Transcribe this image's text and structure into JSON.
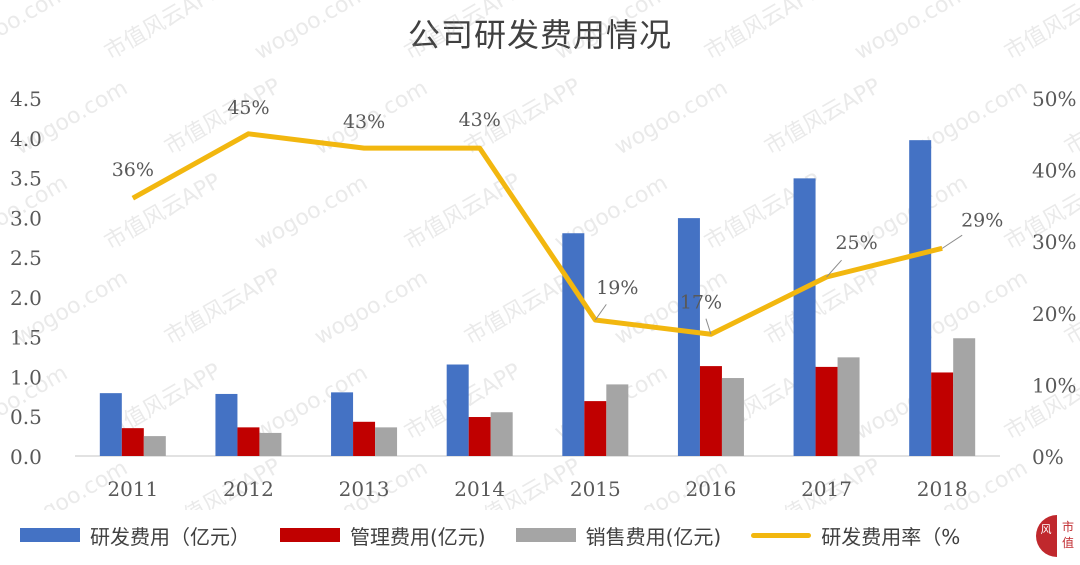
{
  "title": "公司研发费用情况",
  "legend": [
    {
      "label": "研发费用（亿元）",
      "type": "bar",
      "color": "#4472C4"
    },
    {
      "label": "管理费用(亿元)",
      "type": "bar",
      "color": "#C00000"
    },
    {
      "label": "销售费用(亿元)",
      "type": "bar",
      "color": "#A5A5A5"
    },
    {
      "label": "研发费用率（%",
      "type": "line",
      "color": "#F2B70F"
    }
  ],
  "watermark": {
    "texts": [
      "wogoo.com",
      "市值风云APP"
    ],
    "logo_text": [
      "风",
      "市",
      "值"
    ]
  },
  "chart_data": {
    "type": "bar",
    "title": "公司研发费用情况",
    "xlabel": "",
    "ylabel": "",
    "categories": [
      "2011",
      "2012",
      "2013",
      "2014",
      "2015",
      "2016",
      "2017",
      "2018"
    ],
    "series": [
      {
        "name": "研发费用（亿元）",
        "type": "bar",
        "axis": "left",
        "color": "#4472C4",
        "values": [
          0.79,
          0.78,
          0.8,
          1.15,
          2.8,
          2.99,
          3.49,
          3.97
        ]
      },
      {
        "name": "管理费用(亿元)",
        "type": "bar",
        "axis": "left",
        "color": "#C00000",
        "values": [
          0.35,
          0.36,
          0.43,
          0.49,
          0.69,
          1.13,
          1.12,
          1.05
        ]
      },
      {
        "name": "销售费用(亿元)",
        "type": "bar",
        "axis": "left",
        "color": "#A5A5A5",
        "values": [
          0.25,
          0.29,
          0.36,
          0.55,
          0.9,
          0.98,
          1.24,
          1.48
        ]
      },
      {
        "name": "研发费用率（%）",
        "type": "line",
        "axis": "right",
        "color": "#F2B70F",
        "values": [
          36,
          45,
          43,
          43,
          19,
          17,
          25,
          29
        ],
        "labels": [
          "36%",
          "45%",
          "43%",
          "43%",
          "19%",
          "17%",
          "25%",
          "29%"
        ]
      }
    ],
    "y_left": {
      "ylim": [
        0,
        4.5
      ],
      "ticks": [
        "0.0",
        "0.5",
        "1.0",
        "1.5",
        "2.0",
        "2.5",
        "3.0",
        "3.5",
        "4.0",
        "4.5"
      ]
    },
    "y_right": {
      "ylim": [
        0,
        50
      ],
      "ticks": [
        "0%",
        "10%",
        "20%",
        "30%",
        "40%",
        "50%"
      ]
    },
    "grid": false,
    "legend_position": "bottom"
  }
}
